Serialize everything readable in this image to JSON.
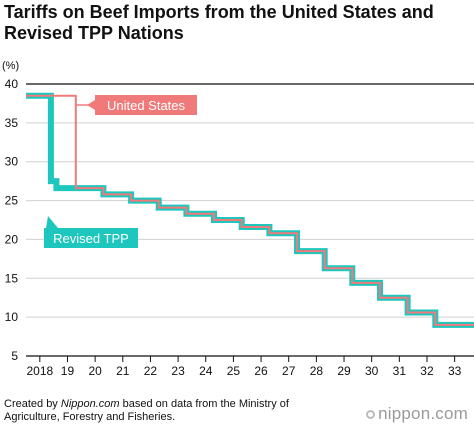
{
  "title": "Tariffs on Beef Imports from the United States and Revised TPP Nations",
  "footer": {
    "prefix": "Created by ",
    "source_site": "Nippon.com",
    "suffix": " based on data from the Ministry of Agriculture, Forestry and Fisheries."
  },
  "brand": {
    "icon": "nippon-logo-icon",
    "text": "nippon.com"
  },
  "chart_data": {
    "type": "line",
    "title": "Tariffs on Beef Imports from the United States and Revised TPP Nations",
    "ylabel": "(%)",
    "xlabel": "",
    "ylim": [
      5,
      40
    ],
    "yticks": [
      5,
      10,
      15,
      20,
      25,
      30,
      35,
      40
    ],
    "xlim": [
      2017.5,
      2033.7
    ],
    "xticks": [
      2018,
      2019,
      2020,
      2021,
      2022,
      2023,
      2024,
      2025,
      2026,
      2027,
      2028,
      2029,
      2030,
      2031,
      2032,
      2033
    ],
    "xtick_labels": [
      "2018",
      "19",
      "20",
      "21",
      "22",
      "23",
      "24",
      "25",
      "26",
      "27",
      "28",
      "29",
      "30",
      "31",
      "32",
      "33"
    ],
    "grid": true,
    "series": [
      {
        "name": "United States",
        "color": "#f07a7a",
        "label_box": true,
        "step_points": [
          [
            2017.5,
            38.5
          ],
          [
            2019.3,
            38.5
          ],
          [
            2019.3,
            26.6
          ],
          [
            2020.3,
            26.6
          ],
          [
            2020.3,
            25.8
          ],
          [
            2021.3,
            25.8
          ],
          [
            2021.3,
            25.0
          ],
          [
            2022.3,
            25.0
          ],
          [
            2022.3,
            24.1
          ],
          [
            2023.3,
            24.1
          ],
          [
            2023.3,
            23.3
          ],
          [
            2024.3,
            23.3
          ],
          [
            2024.3,
            22.5
          ],
          [
            2025.3,
            22.5
          ],
          [
            2025.3,
            21.6
          ],
          [
            2026.3,
            21.6
          ],
          [
            2026.3,
            20.8
          ],
          [
            2027.3,
            20.8
          ],
          [
            2027.3,
            18.5
          ],
          [
            2028.3,
            18.5
          ],
          [
            2028.3,
            16.3
          ],
          [
            2029.3,
            16.3
          ],
          [
            2029.3,
            14.4
          ],
          [
            2030.3,
            14.4
          ],
          [
            2030.3,
            12.5
          ],
          [
            2031.3,
            12.5
          ],
          [
            2031.3,
            10.6
          ],
          [
            2032.3,
            10.6
          ],
          [
            2032.3,
            9.0
          ],
          [
            2033.7,
            9.0
          ]
        ]
      },
      {
        "name": "Revised TPP",
        "color": "#1ec7be",
        "label_box": true,
        "step_points": [
          [
            2017.5,
            38.5
          ],
          [
            2018.4,
            38.5
          ],
          [
            2018.4,
            27.5
          ],
          [
            2018.6,
            27.5
          ],
          [
            2018.6,
            26.6
          ],
          [
            2020.3,
            26.6
          ],
          [
            2020.3,
            25.8
          ],
          [
            2021.3,
            25.8
          ],
          [
            2021.3,
            25.0
          ],
          [
            2022.3,
            25.0
          ],
          [
            2022.3,
            24.1
          ],
          [
            2023.3,
            24.1
          ],
          [
            2023.3,
            23.3
          ],
          [
            2024.3,
            23.3
          ],
          [
            2024.3,
            22.5
          ],
          [
            2025.3,
            22.5
          ],
          [
            2025.3,
            21.6
          ],
          [
            2026.3,
            21.6
          ],
          [
            2026.3,
            20.8
          ],
          [
            2027.3,
            20.8
          ],
          [
            2027.3,
            18.5
          ],
          [
            2028.3,
            18.5
          ],
          [
            2028.3,
            16.3
          ],
          [
            2029.3,
            16.3
          ],
          [
            2029.3,
            14.4
          ],
          [
            2030.3,
            14.4
          ],
          [
            2030.3,
            12.5
          ],
          [
            2031.3,
            12.5
          ],
          [
            2031.3,
            10.6
          ],
          [
            2032.3,
            10.6
          ],
          [
            2032.3,
            9.0
          ],
          [
            2033.7,
            9.0
          ]
        ]
      }
    ]
  }
}
